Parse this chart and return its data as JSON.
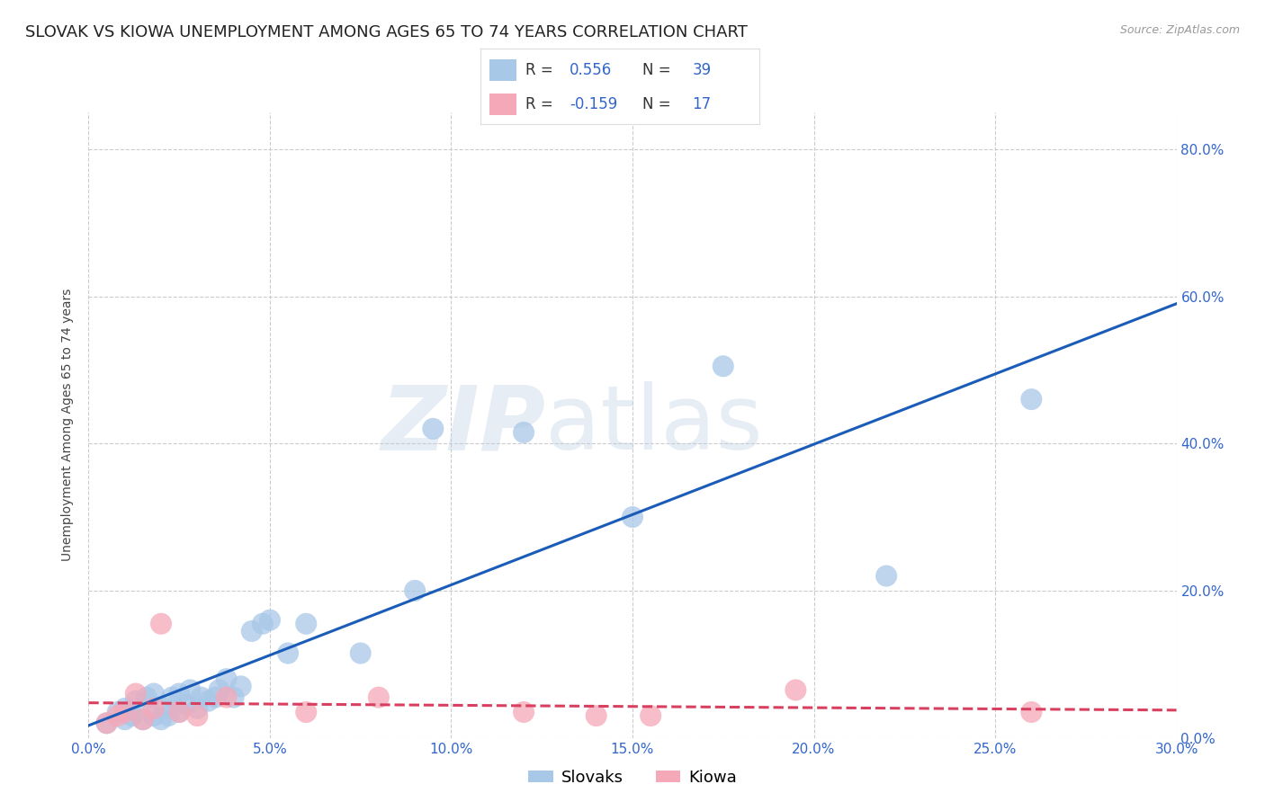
{
  "title": "SLOVAK VS KIOWA UNEMPLOYMENT AMONG AGES 65 TO 74 YEARS CORRELATION CHART",
  "source": "Source: ZipAtlas.com",
  "ylabel": "Unemployment Among Ages 65 to 74 years",
  "xlim": [
    0.0,
    0.3
  ],
  "ylim": [
    0.0,
    0.85
  ],
  "slovak_R": 0.556,
  "slovak_N": 39,
  "kiowa_R": -0.159,
  "kiowa_N": 17,
  "slovak_color": "#a8c8e8",
  "kiowa_color": "#f5a8b8",
  "slovak_line_color": "#1a5cb8",
  "kiowa_line_color": "#d94060",
  "background_color": "#ffffff",
  "grid_color": "#cccccc",
  "watermark_zip": "ZIP",
  "watermark_atlas": "atlas",
  "title_fontsize": 13,
  "axis_label_fontsize": 10,
  "tick_fontsize": 11,
  "slovak_x": [
    0.005,
    0.008,
    0.01,
    0.01,
    0.012,
    0.013,
    0.015,
    0.016,
    0.018,
    0.018,
    0.02,
    0.021,
    0.022,
    0.023,
    0.025,
    0.025,
    0.027,
    0.028,
    0.03,
    0.031,
    0.033,
    0.035,
    0.036,
    0.038,
    0.04,
    0.042,
    0.045,
    0.048,
    0.05,
    0.055,
    0.06,
    0.075,
    0.09,
    0.095,
    0.12,
    0.15,
    0.175,
    0.22,
    0.26
  ],
  "slovak_y": [
    0.02,
    0.035,
    0.025,
    0.04,
    0.03,
    0.05,
    0.025,
    0.055,
    0.03,
    0.06,
    0.025,
    0.04,
    0.03,
    0.055,
    0.035,
    0.06,
    0.045,
    0.065,
    0.04,
    0.055,
    0.05,
    0.055,
    0.065,
    0.08,
    0.055,
    0.07,
    0.145,
    0.155,
    0.16,
    0.115,
    0.155,
    0.115,
    0.2,
    0.42,
    0.415,
    0.3,
    0.505,
    0.22,
    0.46
  ],
  "kiowa_x": [
    0.005,
    0.008,
    0.01,
    0.013,
    0.015,
    0.018,
    0.02,
    0.025,
    0.03,
    0.038,
    0.06,
    0.08,
    0.12,
    0.14,
    0.155,
    0.195,
    0.26
  ],
  "kiowa_y": [
    0.02,
    0.03,
    0.035,
    0.06,
    0.025,
    0.04,
    0.155,
    0.035,
    0.03,
    0.055,
    0.035,
    0.055,
    0.035,
    0.03,
    0.03,
    0.065,
    0.035
  ]
}
